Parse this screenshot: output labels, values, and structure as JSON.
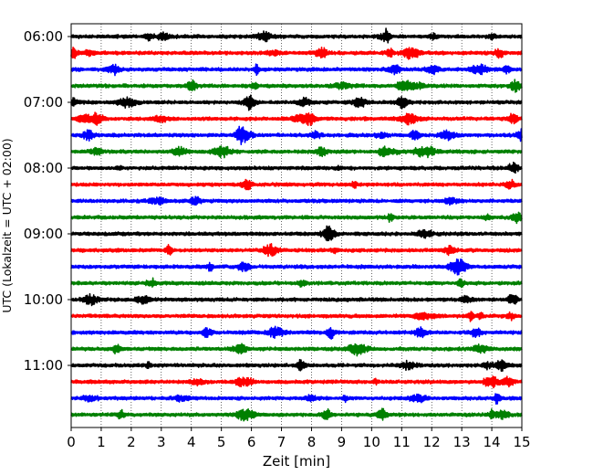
{
  "chart_data": {
    "type": "line",
    "title": "",
    "xlabel": "Zeit  [min]",
    "ylabel": "UTC (Lokalzeit = UTC + 02:00)",
    "xlim": [
      0,
      15
    ],
    "x_ticks": [
      "0",
      "1",
      "2",
      "3",
      "4",
      "5",
      "6",
      "7",
      "8",
      "9",
      "10",
      "11",
      "12",
      "13",
      "14",
      "15"
    ],
    "y_ticks": [
      "06:00",
      "07:00",
      "08:00",
      "09:00",
      "10:00",
      "11:00"
    ],
    "grid": "vertical-dotted",
    "trace_interval_min": 15,
    "color_cycle": [
      "#000000",
      "#ff0000",
      "#0000ff",
      "#008000"
    ],
    "series": [
      {
        "start": "06:00",
        "color": "#000000"
      },
      {
        "start": "06:15",
        "color": "#ff0000"
      },
      {
        "start": "06:30",
        "color": "#0000ff"
      },
      {
        "start": "06:45",
        "color": "#008000"
      },
      {
        "start": "07:00",
        "color": "#000000"
      },
      {
        "start": "07:15",
        "color": "#ff0000"
      },
      {
        "start": "07:30",
        "color": "#0000ff"
      },
      {
        "start": "07:45",
        "color": "#008000"
      },
      {
        "start": "08:00",
        "color": "#000000"
      },
      {
        "start": "08:15",
        "color": "#ff0000"
      },
      {
        "start": "08:30",
        "color": "#0000ff"
      },
      {
        "start": "08:45",
        "color": "#008000"
      },
      {
        "start": "09:00",
        "color": "#000000"
      },
      {
        "start": "09:15",
        "color": "#ff0000"
      },
      {
        "start": "09:30",
        "color": "#0000ff"
      },
      {
        "start": "09:45",
        "color": "#008000"
      },
      {
        "start": "10:00",
        "color": "#000000"
      },
      {
        "start": "10:15",
        "color": "#ff0000"
      },
      {
        "start": "10:30",
        "color": "#0000ff"
      },
      {
        "start": "10:45",
        "color": "#008000"
      },
      {
        "start": "11:00",
        "color": "#000000"
      },
      {
        "start": "11:15",
        "color": "#ff0000"
      },
      {
        "start": "11:30",
        "color": "#0000ff"
      },
      {
        "start": "11:45",
        "color": "#008000"
      }
    ]
  }
}
